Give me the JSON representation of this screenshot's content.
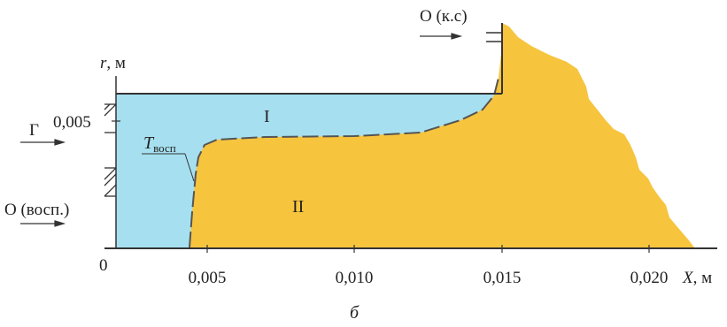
{
  "axes": {
    "y_label_var": "r",
    "y_label_unit": ", м",
    "x_label_var": "X",
    "x_label_unit": ", м",
    "origin": "0",
    "y_ticks": [
      "0,005"
    ],
    "x_ticks": [
      "0,005",
      "0,010",
      "0,015",
      "0,020"
    ]
  },
  "zones": {
    "zone_1": "I",
    "zone_2": "II"
  },
  "inlets": {
    "gas": "Г",
    "oxidizer_ignition": "О (восп.)",
    "oxidizer_combustion": "О (к.с)"
  },
  "flame_front": {
    "symbol": "T",
    "subscript": "восп"
  },
  "caption": "б",
  "colors": {
    "cold_region": "#a6e0f0",
    "hot_region": "#f7c43e",
    "lines": "#333333"
  }
}
